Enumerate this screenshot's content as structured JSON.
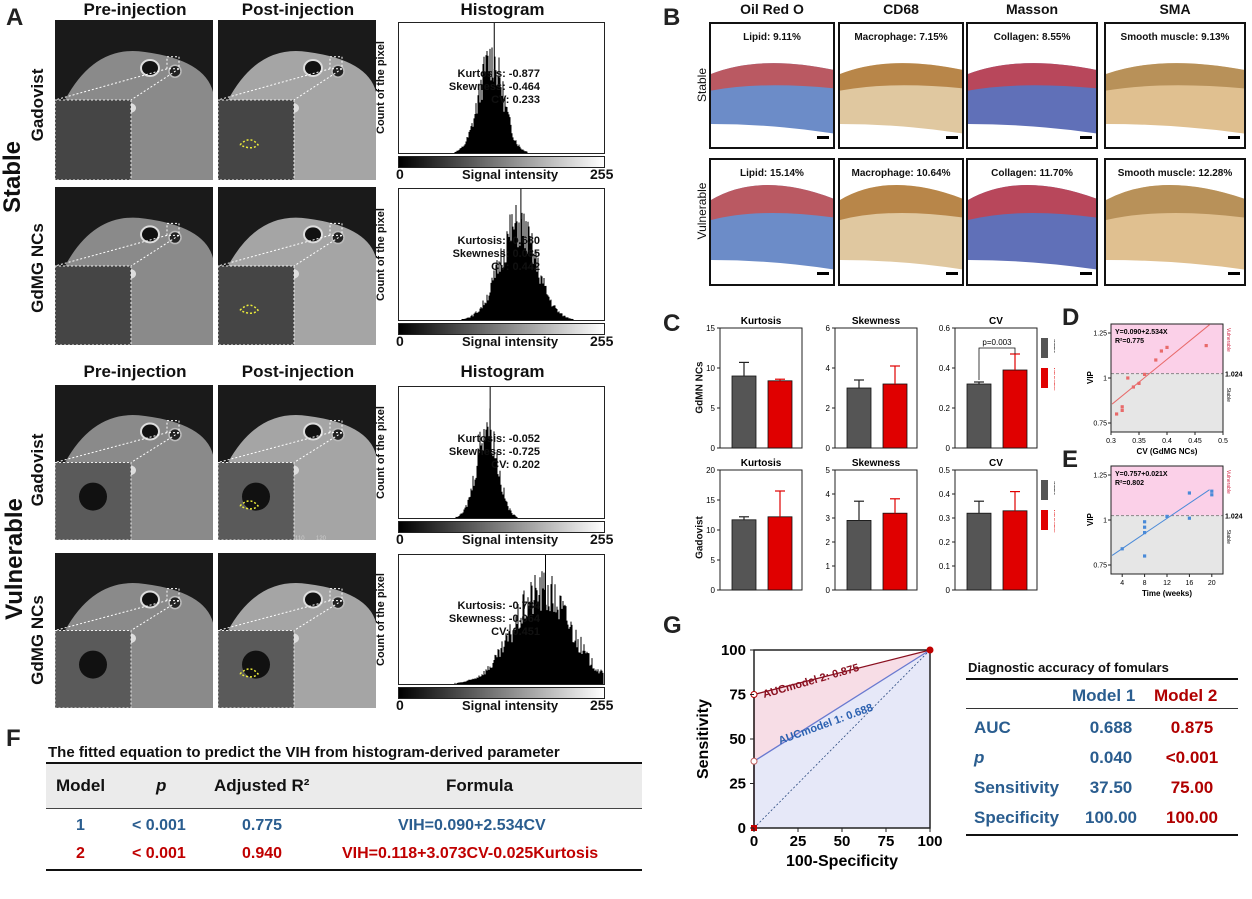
{
  "panels": {
    "A": "A",
    "B": "B",
    "C": "C",
    "D": "D",
    "E": "E",
    "F": "F",
    "G": "G"
  },
  "panelA": {
    "col_pre": "Pre-injection",
    "col_post": "Post-injection",
    "col_hist": "Histogram",
    "group_stable": "Stable",
    "group_vulnerable": "Vulnerable",
    "row_gadovist": "Gadovist",
    "row_gdmg": "GdMG NCs",
    "hist_ylabel": "Count of the pixel",
    "hist_xlabel": "Signal intensity",
    "hist_min": "0",
    "hist_max": "255",
    "kurtosis_label": "Kurtosis:",
    "skewness_label": "Skewness:",
    "cv_label": "CV:",
    "histograms": [
      {
        "kurtosis": "-0.877",
        "skewness": "-0.464",
        "cv": "0.233"
      },
      {
        "kurtosis": "-0.630",
        "skewness": "0.085",
        "cv": "0.442"
      },
      {
        "kurtosis": "-0.052",
        "skewness": "-0.725",
        "cv": "0.202"
      },
      {
        "kurtosis": "-0.784",
        "skewness": "-0.064",
        "cv": "0.451"
      }
    ],
    "scale_text_a": "110",
    "scale_text_b": "120"
  },
  "panelB": {
    "cols": [
      "Oil Red O",
      "CD68",
      "Masson",
      "SMA"
    ],
    "row_stable": "Stable",
    "row_vulnerable": "Vulnerable",
    "stable_labels": [
      "Lipid: 9.11%",
      "Macrophage: 7.15%",
      "Collagen: 8.55%",
      "Smooth muscle: 9.13%"
    ],
    "vulnerable_labels": [
      "Lipid: 15.14%",
      "Macrophage: 10.64%",
      "Collagen: 11.70%",
      "Smooth muscle: 12.28%"
    ]
  },
  "panelC": {
    "row1_label": "GdMN NCs",
    "row2_label": "Gadovist",
    "titles": [
      "Kurtosis",
      "Skewness",
      "CV"
    ],
    "legend_stable": "Stable",
    "legend_vulnerable": "Vulnerable",
    "p_label": "p=0.003",
    "colors": {
      "stable": "#555555",
      "vulnerable": "#e00000"
    }
  },
  "chart_data": [
    {
      "type": "bar",
      "title": "Kurtosis",
      "group": "GdMN NCs",
      "categories": [
        "Stable",
        "Vulnerable"
      ],
      "values": [
        9.0,
        8.4
      ],
      "errors": [
        1.7,
        0.2
      ],
      "ylim": [
        0,
        15
      ],
      "yticks": [
        0,
        5,
        10,
        15
      ]
    },
    {
      "type": "bar",
      "title": "Skewness",
      "group": "GdMN NCs",
      "categories": [
        "Stable",
        "Vulnerable"
      ],
      "values": [
        3.0,
        3.2
      ],
      "errors": [
        0.4,
        0.9
      ],
      "ylim": [
        0,
        6
      ],
      "yticks": [
        0,
        2,
        4,
        6
      ]
    },
    {
      "type": "bar",
      "title": "CV",
      "group": "GdMN NCs",
      "categories": [
        "Stable",
        "Vulnerable"
      ],
      "values": [
        0.32,
        0.39
      ],
      "errors": [
        0.01,
        0.08
      ],
      "ylim": [
        0,
        0.6
      ],
      "yticks": [
        0.0,
        0.2,
        0.4,
        0.6
      ]
    },
    {
      "type": "bar",
      "title": "Kurtosis",
      "group": "Gadovist",
      "categories": [
        "Stable",
        "Vulnerable"
      ],
      "values": [
        11.7,
        12.2
      ],
      "errors": [
        0.5,
        4.3
      ],
      "ylim": [
        0,
        20
      ],
      "yticks": [
        0,
        5,
        10,
        15,
        20
      ]
    },
    {
      "type": "bar",
      "title": "Skewness",
      "group": "Gadovist",
      "categories": [
        "Stable",
        "Vulnerable"
      ],
      "values": [
        2.9,
        3.2
      ],
      "errors": [
        0.8,
        0.6
      ],
      "ylim": [
        0,
        5
      ],
      "yticks": [
        0,
        1,
        2,
        3,
        4,
        5
      ]
    },
    {
      "type": "bar",
      "title": "CV",
      "group": "Gadovist",
      "categories": [
        "Stable",
        "Vulnerable"
      ],
      "values": [
        0.32,
        0.33
      ],
      "errors": [
        0.05,
        0.08
      ],
      "ylim": [
        0,
        0.5
      ],
      "yticks": [
        0.0,
        0.1,
        0.2,
        0.3,
        0.4,
        0.5
      ]
    },
    {
      "type": "scatter",
      "panel": "D",
      "equation": "Y=0.090+2.534X",
      "r2": "R²=0.775",
      "xlabel": "CV (GdMG NCs)",
      "ylabel": "VIP",
      "threshold": 1.024,
      "threshold_label": "1.024",
      "top_label": "Vulnerable",
      "bottom_label": "Stable",
      "xlim": [
        0.3,
        0.5
      ],
      "ylim": [
        0.7,
        1.3
      ],
      "xticks": [
        0.3,
        0.35,
        0.4,
        0.45,
        0.5
      ],
      "yticks": [
        0.75,
        1.0,
        1.25
      ],
      "x": [
        0.31,
        0.32,
        0.32,
        0.33,
        0.34,
        0.35,
        0.36,
        0.38,
        0.39,
        0.4,
        0.47
      ],
      "y": [
        0.8,
        0.84,
        0.82,
        1.0,
        0.95,
        0.97,
        1.02,
        1.1,
        1.15,
        1.17,
        1.18
      ],
      "fit": [
        0.09,
        2.534
      ]
    },
    {
      "type": "scatter",
      "panel": "E",
      "equation": "Y=0.757+0.021X",
      "r2": "R²=0.802",
      "xlabel": "Time (weeks)",
      "ylabel": "VIP",
      "threshold": 1.024,
      "threshold_label": "1.024",
      "top_label": "Vulnerable",
      "bottom_label": "Stable",
      "xlim": [
        2,
        22
      ],
      "ylim": [
        0.7,
        1.3
      ],
      "xticks": [
        4,
        8,
        12,
        16,
        20
      ],
      "yticks": [
        0.75,
        1.0,
        1.25
      ],
      "x": [
        4,
        8,
        8,
        8,
        8,
        12,
        16,
        16,
        20,
        20
      ],
      "y": [
        0.84,
        0.8,
        0.93,
        0.96,
        0.99,
        1.02,
        1.01,
        1.15,
        1.16,
        1.14
      ],
      "fit": [
        0.757,
        0.021
      ]
    },
    {
      "type": "line",
      "panel": "G",
      "xlabel": "100-Specificity",
      "ylabel": "Sensitivity",
      "xlim": [
        0,
        100
      ],
      "ylim": [
        0,
        100
      ],
      "xticks": [
        0,
        25,
        50,
        75,
        100
      ],
      "yticks": [
        0,
        25,
        50,
        75,
        100
      ],
      "series": [
        {
          "name": "Model 1",
          "auc": "0.688",
          "x": [
            0,
            0,
            100
          ],
          "y": [
            0,
            37.5,
            100
          ]
        },
        {
          "name": "Model 2",
          "auc": "0.875",
          "x": [
            0,
            0,
            100
          ],
          "y": [
            0,
            75,
            100
          ]
        }
      ]
    }
  ],
  "panelF": {
    "caption": "The fitted equation to predict the VIH from histogram-derived parameter",
    "headers": [
      "Model",
      "p",
      "Adjusted R²",
      "Formula"
    ],
    "rows": [
      {
        "model": "1",
        "p": "< 0.001",
        "r2": "0.775",
        "formula": "VIH=0.090+2.534CV"
      },
      {
        "model": "2",
        "p": "< 0.001",
        "r2": "0.940",
        "formula": "VIH=0.118+3.073CV-0.025Kurtosis"
      }
    ]
  },
  "panelG": {
    "auc2_label": "AUCmodel 2: 0.875",
    "auc1_label": "AUCmodel 1: 0.688",
    "table_title": "Diagnostic accuracy of fomulars",
    "model1": "Model 1",
    "model2": "Model 2",
    "rows": [
      {
        "name": "AUC",
        "m1": "0.688",
        "m2": "0.875"
      },
      {
        "name": "p",
        "m1": "0.040",
        "m2": "<0.001"
      },
      {
        "name": "Sensitivity",
        "m1": "37.50",
        "m2": "75.00"
      },
      {
        "name": "Specificity",
        "m1": "100.00",
        "m2": "100.00"
      }
    ],
    "colors": {
      "model1": "#2a5d8f",
      "model2": "#b00000"
    }
  }
}
